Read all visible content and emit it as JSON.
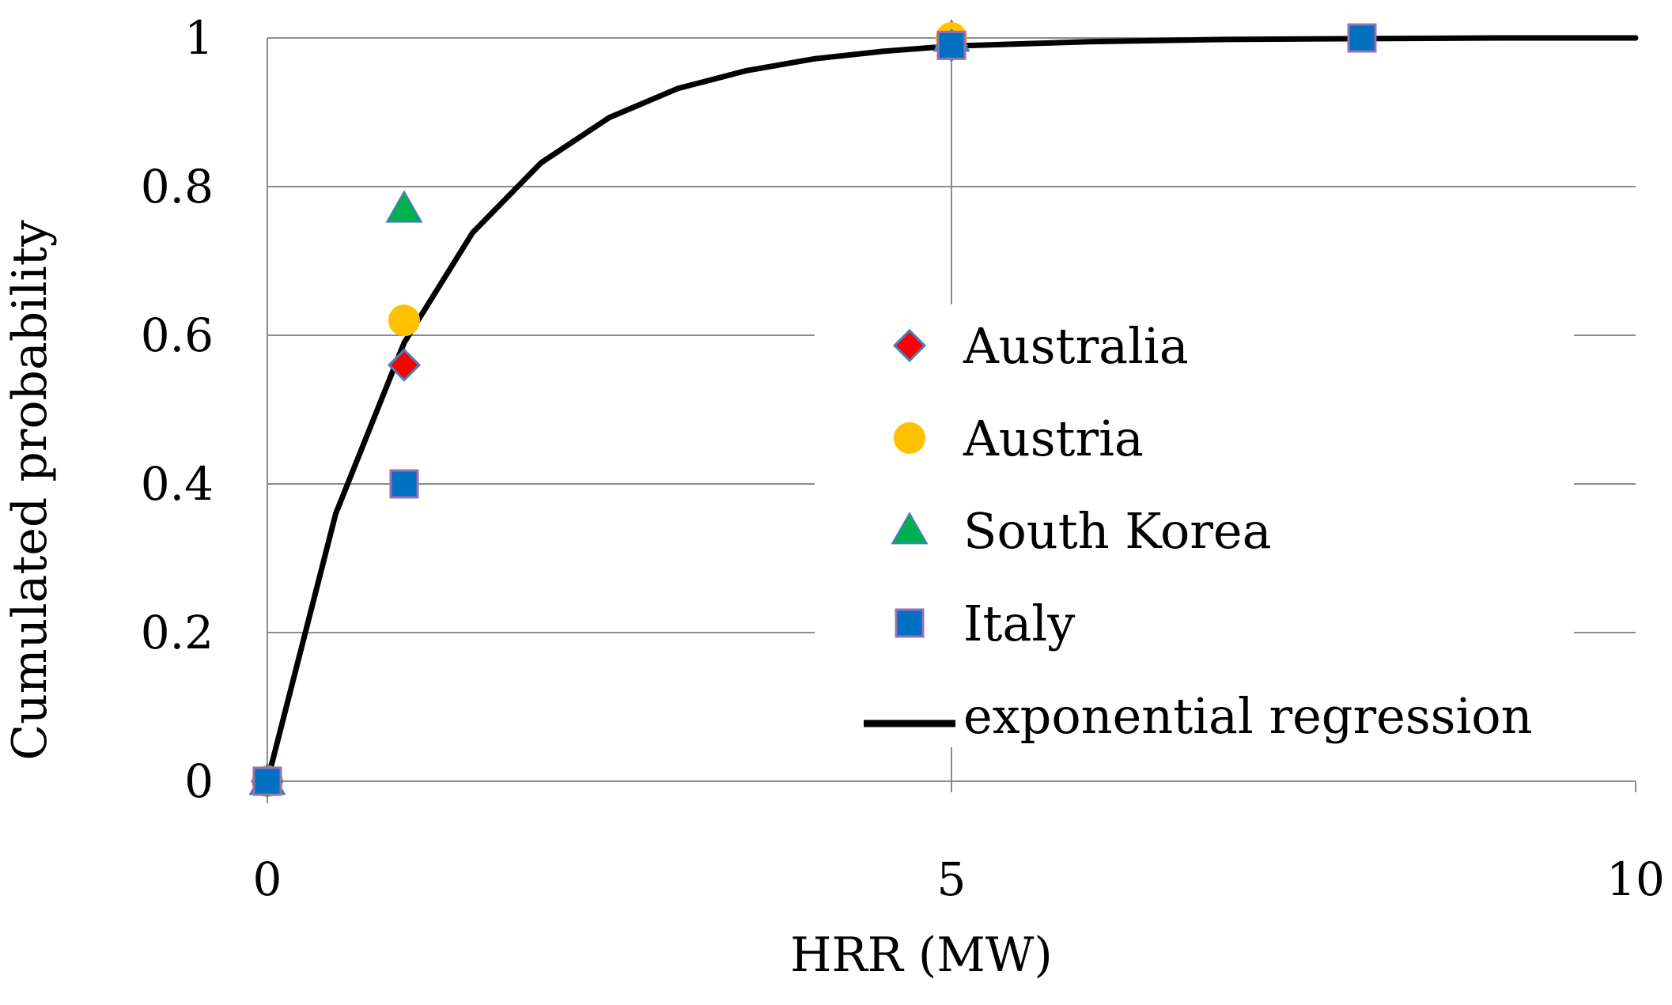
{
  "chart_data": {
    "type": "scatter",
    "title": "",
    "xlabel": "HRR (MW)",
    "ylabel": "Cumulated probability",
    "xlim": [
      0,
      10
    ],
    "ylim": [
      0,
      1
    ],
    "x_ticks": [
      0,
      5,
      10
    ],
    "y_ticks": [
      0,
      0.2,
      0.4,
      0.6,
      0.8,
      1
    ],
    "x_tick_labels": [
      "0",
      "5",
      "10"
    ],
    "y_tick_labels": [
      "0",
      "0.2",
      "0.4",
      "0.6",
      "0.8",
      "1"
    ],
    "grid": "horizontal major gridlines, vertical line at x = 5",
    "legend_position": "center-right",
    "series": [
      {
        "name": "Australia",
        "marker": "diamond",
        "color": "#ff0000",
        "edge_color": "#4a7ebb",
        "x": [
          0,
          1,
          5
        ],
        "y": [
          0,
          0.56,
          0.99
        ]
      },
      {
        "name": "Austria",
        "marker": "circle",
        "color": "#ffc000",
        "edge_color": "#ffc000",
        "x": [
          0,
          1,
          5
        ],
        "y": [
          0,
          0.62,
          1.0
        ]
      },
      {
        "name": "South Korea",
        "marker": "triangle",
        "color": "#00b050",
        "edge_color": "#4a7ebb",
        "x": [
          0,
          1,
          5
        ],
        "y": [
          0,
          0.77,
          1.0
        ]
      },
      {
        "name": "Italy",
        "marker": "square",
        "color": "#0070c0",
        "edge_color": "#9a6fb5",
        "x": [
          0,
          1,
          5,
          8
        ],
        "y": [
          0,
          0.4,
          0.99,
          1.0
        ]
      },
      {
        "name": "exponential regression",
        "marker": "line",
        "color": "#000000",
        "x": [
          0,
          0.5,
          1,
          1.5,
          2,
          2.5,
          3,
          3.5,
          4,
          4.5,
          5,
          6,
          7,
          8,
          9,
          10
        ],
        "y": [
          0,
          0.36,
          0.59,
          0.738,
          0.832,
          0.893,
          0.932,
          0.956,
          0.972,
          0.982,
          0.989,
          0.995,
          0.998,
          0.999,
          1.0,
          1.0
        ]
      }
    ]
  }
}
